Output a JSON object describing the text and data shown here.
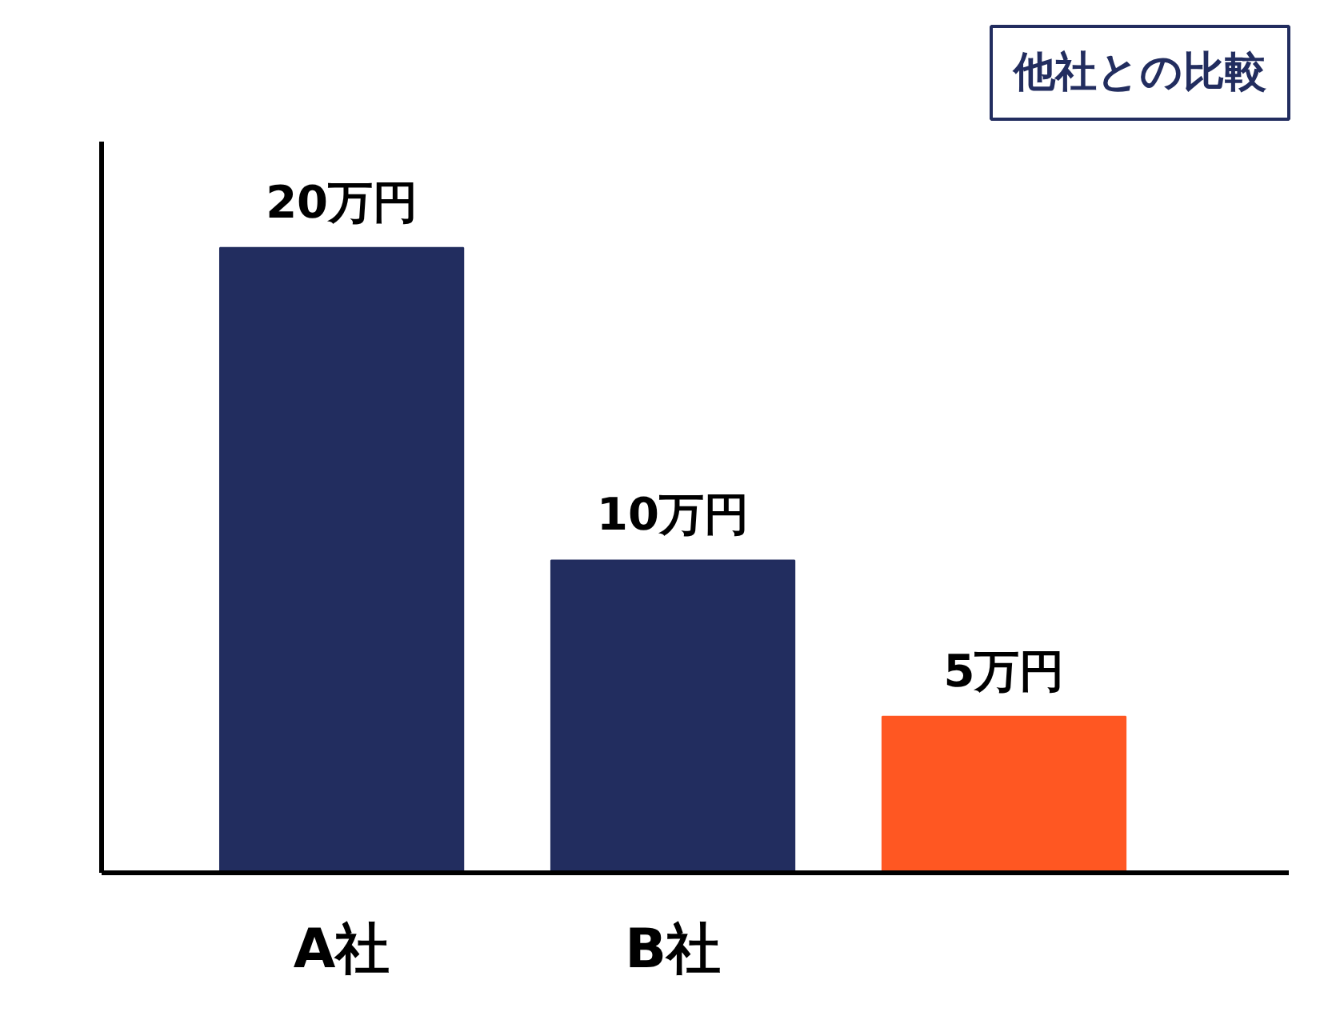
{
  "chart_data": {
    "type": "bar",
    "title": "他社との比較",
    "categories": [
      "A社",
      "B社",
      null
    ],
    "values": [
      20,
      10,
      5
    ],
    "colors": [
      "#222d5f",
      "#222d5f",
      "#ff5722"
    ],
    "value_labels": [
      "20万円",
      "10万円",
      "5万円"
    ],
    "ylim": [
      0,
      23.4
    ],
    "tick_labels": "x",
    "grid": false
  }
}
